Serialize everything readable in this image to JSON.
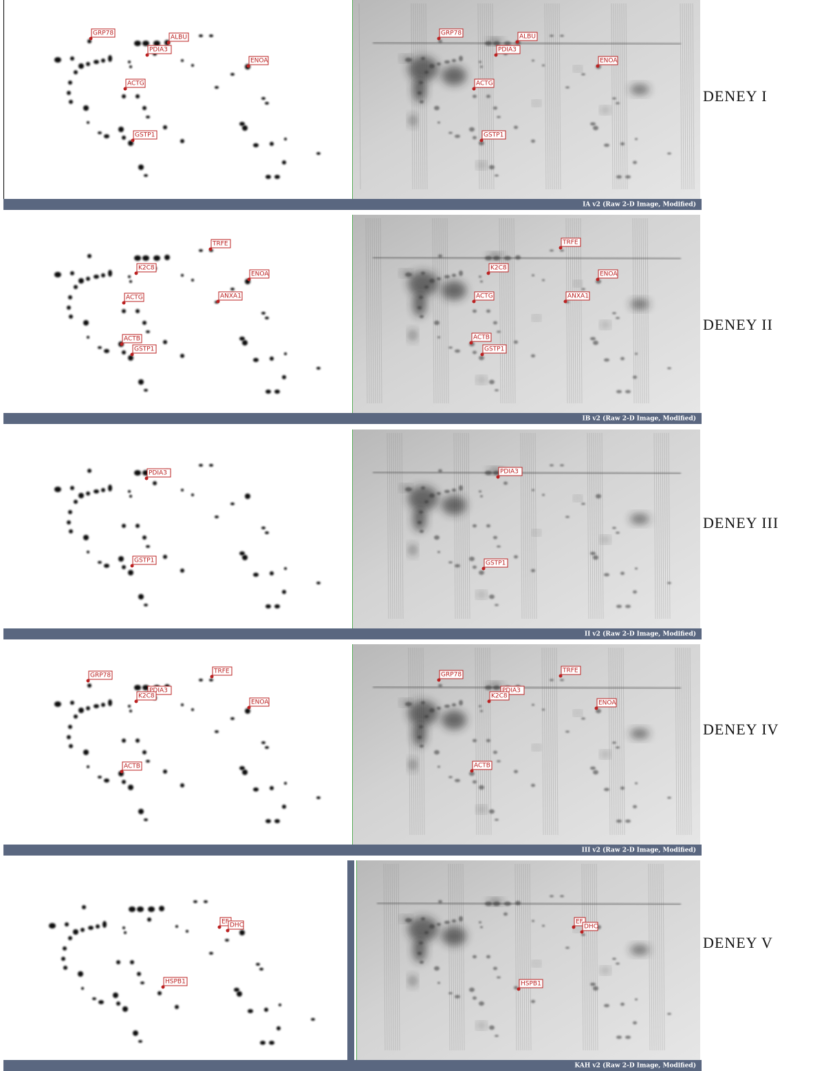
{
  "rows": [
    {
      "label": "DENEY I",
      "caption": "IA v2 (Raw 2-D Image, Modified)",
      "spot_tags": [
        "GRP78",
        "ALBU",
        "PDIA3",
        "ENOA",
        "ACTG",
        "GSTP1"
      ],
      "gel_tags": [
        "GRP78",
        "ALBU",
        "PDIA3",
        "ENOA",
        "ACTG",
        "GSTP1"
      ]
    },
    {
      "label": "DENEY II",
      "caption": "IB v2 (Raw 2-D Image, Modified)",
      "spot_tags": [
        "TRFE",
        "K2C8",
        "ENOA",
        "ACTG",
        "ANXA1",
        "ACTB",
        "GSTP1"
      ],
      "gel_tags": [
        "TRFE",
        "K2C8",
        "ENOA",
        "ACTG",
        "ANXA1",
        "ACTB",
        "GSTP1"
      ]
    },
    {
      "label": "DENEY III",
      "caption": "II v2 (Raw 2-D Image, Modified)",
      "spot_tags": [
        "PDIA3",
        "GSTP1"
      ],
      "gel_tags": [
        "PDIA3",
        "GSTP1"
      ]
    },
    {
      "label": "DENEY IV",
      "caption": "III v2 (Raw 2-D Image, Modified)",
      "spot_tags": [
        "GRP78",
        "TRFE",
        "PDIA3",
        "K2C8",
        "ENOA",
        "ACTB"
      ],
      "gel_tags": [
        "GRP78",
        "TRFE",
        "PDIA3",
        "K2C8",
        "ENOA",
        "ACTB"
      ]
    },
    {
      "label": "DENEY V",
      "caption": "KAH v2 (Raw 2-D Image, Modified)",
      "spot_tags": [
        "EF",
        "DHC",
        "HSPB1"
      ],
      "gel_tags": [
        "EF",
        "DHC",
        "HSPB1"
      ]
    }
  ]
}
